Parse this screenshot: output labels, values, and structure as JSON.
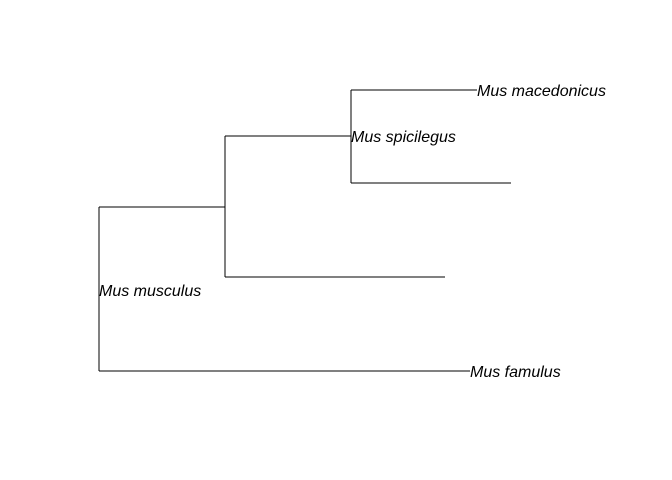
{
  "tree": {
    "line_color": "#000000",
    "taxa": {
      "mus_macedonicus": "Mus macedonicus",
      "mus_spicilegus": "Mus spicilegus",
      "mus_musculus": "Mus musculus",
      "mus_famulus": "Mus famulus"
    }
  }
}
